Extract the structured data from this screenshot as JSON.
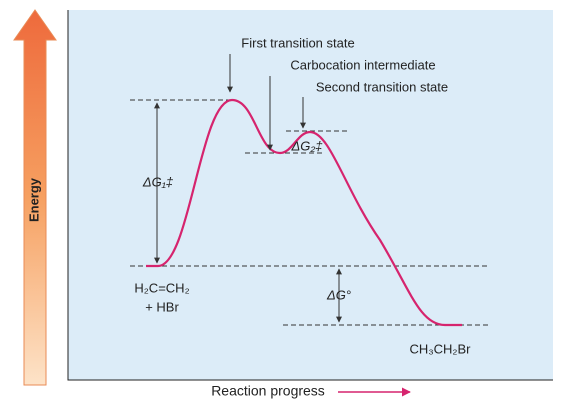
{
  "axes": {
    "y_label": "Energy",
    "x_label": "Reaction progress"
  },
  "annotations": {
    "first_ts": "First transition state",
    "intermediate": "Carbocation intermediate",
    "second_ts": "Second transition state"
  },
  "energies": {
    "dg1": "ΔG₁‡",
    "dg2": "ΔG₂‡",
    "dg0": "ΔG°"
  },
  "species": {
    "reactant_line1": "H₂C=CH₂",
    "reactant_line2": "+ HBr",
    "product": "CH₃CH₂Br"
  }
}
